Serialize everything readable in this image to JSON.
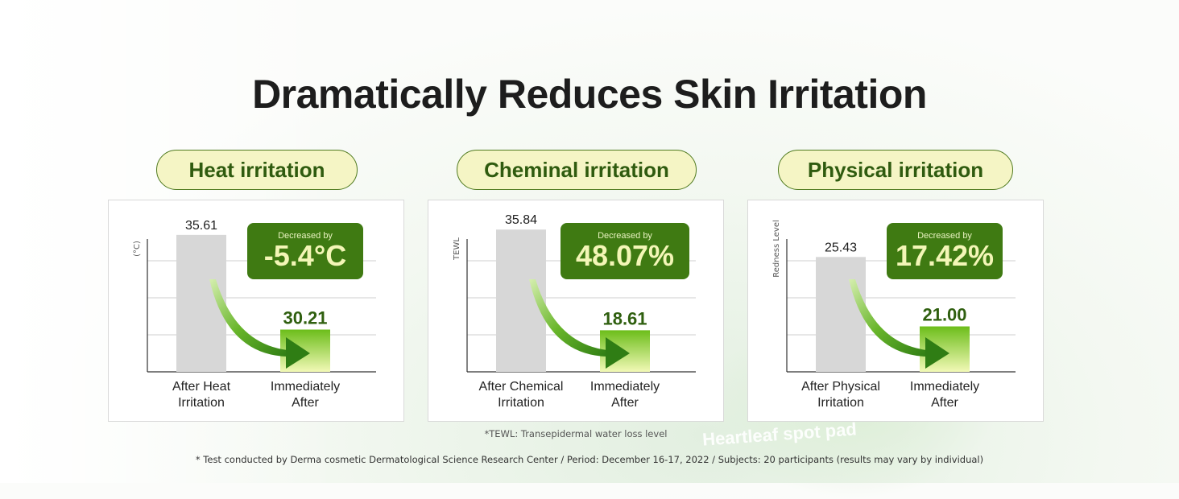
{
  "title": "Dramatically Reduces Skin Irritation",
  "product_text": "Heartleaf spot pad",
  "footnote_tewl": "*TEWL: Transepidermal water loss level",
  "footnote_test": "* Test conducted by Derma cosmetic Dermatological Science Research Center / Period: December 16-17, 2022 / Subjects: 20 participants (results may vary by individual)",
  "colors": {
    "bar_before": "#d7d7d7",
    "bar_after_top": "#6cbd1a",
    "bar_after_bottom": "#f2f9b6",
    "badge": "#3f7a12",
    "pill_bg": "#f5f5c5"
  },
  "chart_data": [
    {
      "type": "bar",
      "title": "Heat irritation",
      "ylabel": "(°C)",
      "categories": [
        "After Heat Irritation",
        "Immediately After"
      ],
      "category_lines": [
        [
          "After Heat",
          "Irritation"
        ],
        [
          "Immediately",
          "After"
        ]
      ],
      "values": [
        35.61,
        30.21
      ],
      "value_labels": [
        "35.61",
        "30.21"
      ],
      "badge_label": "Decreased by",
      "badge_value": "-5.4°C",
      "ylim": [
        27.8,
        36.2
      ]
    },
    {
      "type": "bar",
      "title": "Cheminal irritation",
      "ylabel": "TEWL",
      "categories": [
        "After Chemical Irritation",
        "Immediately After"
      ],
      "category_lines": [
        [
          "After Chemical",
          "Irritation"
        ],
        [
          "Immediately",
          "After"
        ]
      ],
      "values": [
        35.84,
        18.61
      ],
      "value_labels": [
        "35.84",
        "18.61"
      ],
      "badge_label": "Decreased by",
      "badge_value": "48.07%",
      "ylim": [
        11.5,
        36.7
      ]
    },
    {
      "type": "bar",
      "title": "Physical irritation",
      "ylabel": "Redness Level",
      "categories": [
        "After Physical Irritation",
        "Immediately After"
      ],
      "category_lines": [
        [
          "After Physical",
          "Irritation"
        ],
        [
          "Immediately",
          "After"
        ]
      ],
      "values": [
        25.43,
        21.0
      ],
      "value_labels": [
        "25.43",
        "21.00"
      ],
      "badge_label": "Decreased by",
      "badge_value": "17.42%",
      "ylim": [
        18.1,
        27.5
      ]
    }
  ]
}
